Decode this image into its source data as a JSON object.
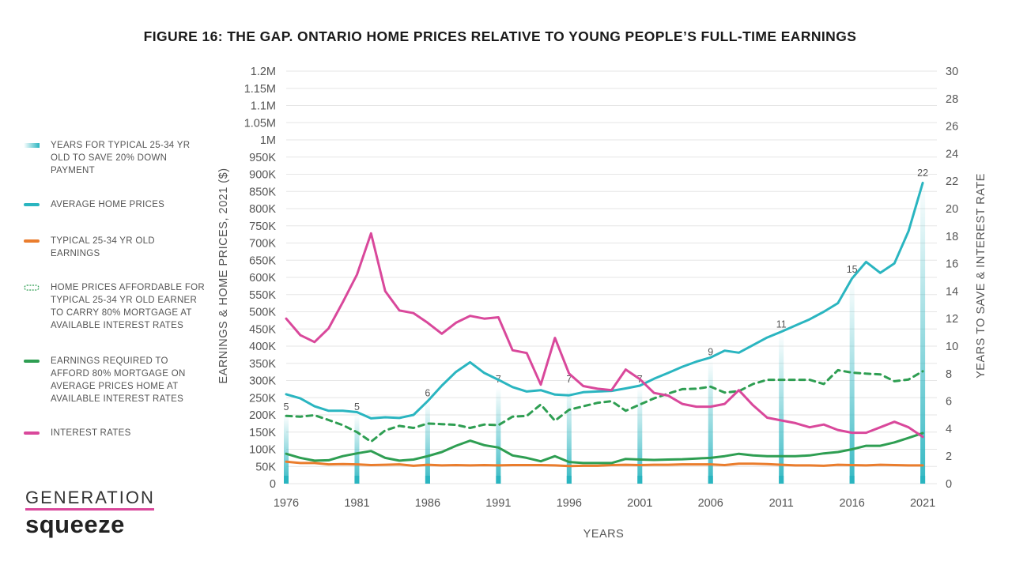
{
  "title": "FIGURE 16: THE GAP. ONTARIO HOME PRICES RELATIVE TO YOUNG PEOPLE’S FULL-TIME EARNINGS",
  "logo": {
    "top": "GENERATION",
    "bottom": "squeeze",
    "accent": "#d9489b"
  },
  "legend": [
    {
      "key": "years",
      "label": "YEARS FOR TYPICAL 25-34 YR OLD TO SAVE 20% DOWN PAYMENT",
      "color": "#2ab5c0"
    },
    {
      "key": "home",
      "label": "AVERAGE HOME PRICES",
      "color": "#2ab5c0"
    },
    {
      "key": "earn",
      "label": "TYPICAL 25-34 YR OLD EARNINGS",
      "color": "#ea7d2d"
    },
    {
      "key": "afford",
      "label": "HOME PRICES AFFORDABLE FOR TYPICAL 25-34 YR OLD EARNER TO CARRY 80% MORTGAGE AT AVAILABLE INTEREST RATES",
      "color": "#2e9e52"
    },
    {
      "key": "req",
      "label": "EARNINGS REQUIRED TO AFFORD 80% MORTGAGE ON AVERAGE PRICES HOME AT AVAILABLE INTEREST RATES",
      "color": "#2e9e52"
    },
    {
      "key": "rate",
      "label": "INTEREST RATES",
      "color": "#d9489b"
    }
  ],
  "chart_data": {
    "type": "line",
    "title": "FIGURE 16: THE GAP. ONTARIO HOME PRICES RELATIVE TO YOUNG PEOPLE’S FULL-TIME EARNINGS",
    "xlabel": "YEARS",
    "ylabel_left": "EARNINGS & HOME PRICES, 2021 ($)",
    "ylabel_right": "YEARS TO SAVE & INTEREST RATE",
    "x_ticks": [
      "1976",
      "1981",
      "1986",
      "1991",
      "1996",
      "2001",
      "2006",
      "2011",
      "2016",
      "2021"
    ],
    "y_left": {
      "min": 0,
      "max": 1200000,
      "step": 50000,
      "tick_labels": [
        "0",
        "50K",
        "100K",
        "150K",
        "200K",
        "250K",
        "300K",
        "350K",
        "400K",
        "450K",
        "500K",
        "550K",
        "600K",
        "650K",
        "700K",
        "750K",
        "800K",
        "850K",
        "900K",
        "950K",
        "1M",
        "1.05M",
        "1.1M",
        "1.15M",
        "1.2M"
      ]
    },
    "y_right": {
      "min": 0,
      "max": 30,
      "step": 2,
      "tick_labels": [
        "0",
        "2",
        "4",
        "6",
        "8",
        "10",
        "12",
        "14",
        "16",
        "18",
        "20",
        "22",
        "24",
        "26",
        "28",
        "30"
      ]
    },
    "grid": true,
    "legend_position": "left",
    "x": [
      1976,
      1977,
      1978,
      1979,
      1980,
      1981,
      1982,
      1983,
      1984,
      1985,
      1986,
      1987,
      1988,
      1989,
      1990,
      1991,
      1992,
      1993,
      1994,
      1995,
      1996,
      1997,
      1998,
      1999,
      2000,
      2001,
      2002,
      2003,
      2004,
      2005,
      2006,
      2007,
      2008,
      2009,
      2010,
      2011,
      2012,
      2013,
      2014,
      2015,
      2016,
      2017,
      2018,
      2019,
      2020,
      2021,
      2022
    ],
    "series": [
      {
        "name": "AVERAGE HOME PRICES",
        "axis": "left",
        "color": "#2ab5c0",
        "values": [
          260000,
          248000,
          225000,
          212000,
          212000,
          208000,
          190000,
          193000,
          191000,
          200000,
          240000,
          285000,
          325000,
          353000,
          322000,
          302000,
          281000,
          268000,
          272000,
          259000,
          257000,
          266000,
          268000,
          270000,
          277000,
          285000,
          305000,
          322000,
          340000,
          355000,
          367000,
          387000,
          381000,
          403000,
          425000,
          442000,
          460000,
          478000,
          500000,
          525000,
          597000,
          645000,
          613000,
          641000,
          735000,
          875000,
          null
        ]
      },
      {
        "name": "TYPICAL 25-34 YR OLD EARNINGS",
        "axis": "left",
        "color": "#ea7d2d",
        "values": [
          64000,
          60000,
          60000,
          56000,
          57000,
          56000,
          54000,
          55000,
          56000,
          52000,
          55000,
          53000,
          54000,
          53000,
          54000,
          53000,
          54000,
          54000,
          54000,
          53000,
          51000,
          52000,
          52000,
          54000,
          55000,
          54000,
          55000,
          55000,
          56000,
          56000,
          56000,
          54000,
          58000,
          58000,
          57000,
          55000,
          53000,
          53000,
          52000,
          55000,
          54000,
          53000,
          55000,
          54000,
          53000,
          53000,
          null
        ]
      },
      {
        "name": "HOME PRICES AFFORDABLE FOR TYPICAL 25-34 YR OLD EARNER TO CARRY 80% MORTGAGE AT AVAILABLE INTEREST RATES",
        "axis": "left",
        "color": "#2e9e52",
        "style": "dashed",
        "values": [
          197000,
          195000,
          199000,
          185000,
          170000,
          150000,
          122000,
          155000,
          168000,
          162000,
          175000,
          173000,
          171000,
          162000,
          172000,
          170000,
          195000,
          197000,
          230000,
          183000,
          215000,
          225000,
          235000,
          240000,
          212000,
          230000,
          248000,
          262000,
          275000,
          276000,
          282000,
          265000,
          269000,
          290000,
          302000,
          302000,
          302000,
          302000,
          290000,
          330000,
          323000,
          320000,
          318000,
          298000,
          303000,
          327000,
          null
        ]
      },
      {
        "name": "EARNINGS REQUIRED TO AFFORD 80% MORTGAGE ON AVERAGE PRICES HOME AT AVAILABLE INTEREST RATES",
        "axis": "left",
        "color": "#2e9e52",
        "values": [
          87000,
          75000,
          67000,
          68000,
          80000,
          88000,
          95000,
          75000,
          67000,
          70000,
          80000,
          92000,
          110000,
          125000,
          112000,
          105000,
          82000,
          75000,
          65000,
          80000,
          63000,
          60000,
          60000,
          60000,
          72000,
          70000,
          69000,
          70000,
          71000,
          73000,
          75000,
          80000,
          87000,
          82000,
          80000,
          80000,
          80000,
          82000,
          88000,
          92000,
          100000,
          110000,
          110000,
          120000,
          133000,
          147000,
          null
        ]
      },
      {
        "name": "INTEREST RATES",
        "axis": "right",
        "color": "#d9489b",
        "values": [
          12.0,
          10.8,
          10.3,
          11.3,
          13.2,
          15.2,
          18.2,
          14.0,
          12.6,
          12.4,
          11.7,
          10.9,
          11.7,
          12.2,
          12.0,
          12.1,
          9.7,
          9.5,
          7.2,
          10.6,
          8.0,
          7.1,
          6.9,
          6.8,
          8.3,
          7.6,
          6.6,
          6.4,
          5.8,
          5.6,
          5.6,
          5.8,
          6.8,
          5.7,
          4.8,
          4.6,
          4.4,
          4.1,
          4.3,
          3.9,
          3.7,
          3.7,
          4.1,
          4.5,
          4.1,
          3.4,
          null
        ]
      },
      {
        "name": "YEARS FOR TYPICAL 25-34 YR OLD TO SAVE 20% DOWN PAYMENT",
        "axis": "right",
        "type": "bar",
        "color": "#2ab5c0",
        "points": [
          {
            "x": 1976,
            "value": 5,
            "label": "5"
          },
          {
            "x": 1981,
            "value": 5,
            "label": "5"
          },
          {
            "x": 1986,
            "value": 6,
            "label": "6"
          },
          {
            "x": 1991,
            "value": 7,
            "label": "7"
          },
          {
            "x": 1996,
            "value": 7,
            "label": "7"
          },
          {
            "x": 2001,
            "value": 7,
            "label": "7"
          },
          {
            "x": 2006,
            "value": 9,
            "label": "9"
          },
          {
            "x": 2011,
            "value": 11,
            "label": "11"
          },
          {
            "x": 2016,
            "value": 15,
            "label": "15"
          },
          {
            "x": 2021,
            "value": 22,
            "label": "22"
          }
        ]
      }
    ]
  }
}
